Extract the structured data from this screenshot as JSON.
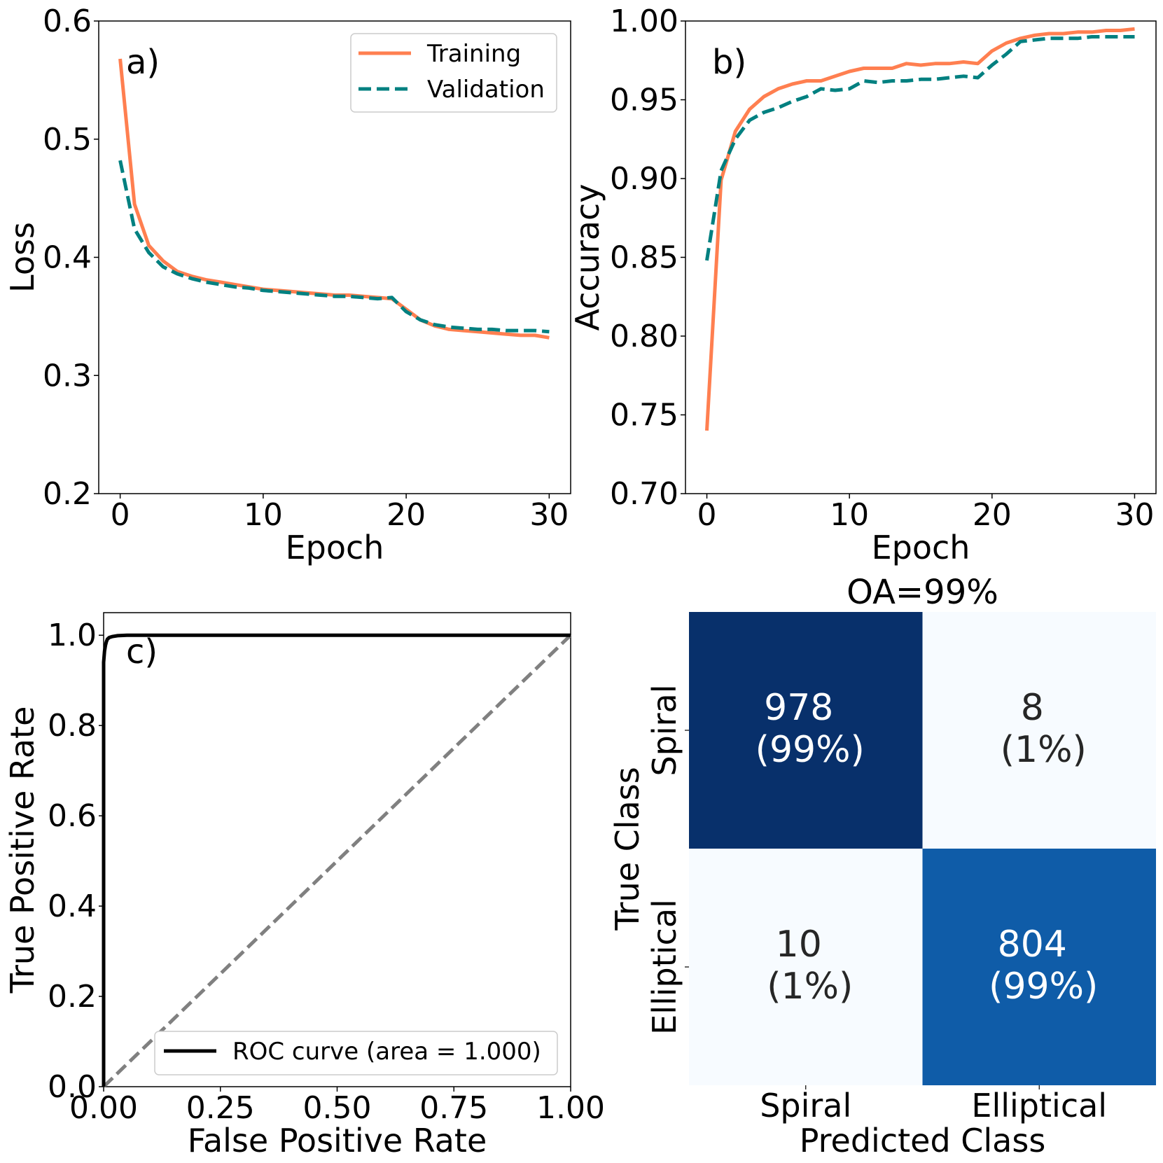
{
  "colors": {
    "training": "#FF7F50",
    "validation": "#008080",
    "roc": "#000000",
    "diagonal": "#808080",
    "cm_dark": "#08306B",
    "cm_mid": "#0F5CA8",
    "cm_light": "#F7FBFF",
    "cm_text_light": "#FFFFFF",
    "cm_text_dark": "#262626"
  },
  "chart_data": [
    {
      "type": "line",
      "panel_label": "a)",
      "xlabel": "Epoch",
      "ylabel": "Loss",
      "xlim": [
        -1.5,
        31.5
      ],
      "ylim": [
        0.2,
        0.6
      ],
      "xticks": [
        0,
        10,
        20,
        30
      ],
      "yticks": [
        0.2,
        0.3,
        0.4,
        0.5,
        0.6
      ],
      "xtick_labels": [
        "0",
        "10",
        "20",
        "30"
      ],
      "ytick_labels": [
        "0.2",
        "0.3",
        "0.4",
        "0.5",
        "0.6"
      ],
      "legend": "top-right",
      "x": [
        0,
        1,
        2,
        3,
        4,
        5,
        6,
        7,
        8,
        9,
        10,
        11,
        12,
        13,
        14,
        15,
        16,
        17,
        18,
        19,
        20,
        21,
        22,
        23,
        24,
        25,
        26,
        27,
        28,
        29,
        30
      ],
      "series": [
        {
          "name": "Training",
          "style": "solid",
          "values": [
            0.568,
            0.445,
            0.41,
            0.397,
            0.388,
            0.384,
            0.381,
            0.379,
            0.377,
            0.375,
            0.373,
            0.372,
            0.371,
            0.37,
            0.369,
            0.368,
            0.368,
            0.367,
            0.366,
            0.365,
            0.356,
            0.347,
            0.342,
            0.339,
            0.338,
            0.337,
            0.336,
            0.335,
            0.334,
            0.334,
            0.332
          ]
        },
        {
          "name": "Validation",
          "style": "dashed",
          "values": [
            0.482,
            0.424,
            0.404,
            0.392,
            0.386,
            0.382,
            0.379,
            0.377,
            0.375,
            0.374,
            0.372,
            0.371,
            0.37,
            0.369,
            0.368,
            0.367,
            0.367,
            0.366,
            0.365,
            0.366,
            0.354,
            0.347,
            0.343,
            0.341,
            0.34,
            0.339,
            0.339,
            0.338,
            0.338,
            0.338,
            0.337
          ]
        }
      ]
    },
    {
      "type": "line",
      "panel_label": "b)",
      "xlabel": "Epoch",
      "ylabel": "Accuracy",
      "xlim": [
        -1.5,
        31.5
      ],
      "ylim": [
        0.7,
        1.0
      ],
      "xticks": [
        0,
        10,
        20,
        30
      ],
      "yticks": [
        0.7,
        0.75,
        0.8,
        0.85,
        0.9,
        0.95,
        1.0
      ],
      "xtick_labels": [
        "0",
        "10",
        "20",
        "30"
      ],
      "ytick_labels": [
        "0.70",
        "0.75",
        "0.80",
        "0.85",
        "0.90",
        "0.95",
        "1.00"
      ],
      "x": [
        0,
        1,
        2,
        3,
        4,
        5,
        6,
        7,
        8,
        9,
        10,
        11,
        12,
        13,
        14,
        15,
        16,
        17,
        18,
        19,
        20,
        21,
        22,
        23,
        24,
        25,
        26,
        27,
        28,
        29,
        30
      ],
      "series": [
        {
          "name": "Training",
          "style": "solid",
          "values": [
            0.74,
            0.899,
            0.93,
            0.944,
            0.952,
            0.957,
            0.96,
            0.962,
            0.962,
            0.965,
            0.968,
            0.97,
            0.97,
            0.97,
            0.973,
            0.972,
            0.973,
            0.973,
            0.974,
            0.973,
            0.981,
            0.986,
            0.989,
            0.991,
            0.992,
            0.992,
            0.993,
            0.993,
            0.994,
            0.994,
            0.995
          ]
        },
        {
          "name": "Validation",
          "style": "dashed",
          "values": [
            0.848,
            0.905,
            0.925,
            0.937,
            0.942,
            0.945,
            0.949,
            0.952,
            0.957,
            0.956,
            0.957,
            0.962,
            0.961,
            0.962,
            0.962,
            0.963,
            0.963,
            0.964,
            0.965,
            0.964,
            0.972,
            0.979,
            0.987,
            0.988,
            0.989,
            0.989,
            0.989,
            0.99,
            0.99,
            0.99,
            0.99
          ]
        }
      ]
    },
    {
      "type": "line",
      "panel_label": "c)",
      "xlabel": "False Positive Rate",
      "ylabel": "True Positive Rate",
      "xlim": [
        0.0,
        1.0
      ],
      "ylim": [
        0.0,
        1.05
      ],
      "xticks": [
        0,
        0.25,
        0.5,
        0.75,
        1.0
      ],
      "yticks": [
        0,
        0.2,
        0.4,
        0.6,
        0.8,
        1.0
      ],
      "xtick_labels": [
        "0.00",
        "0.25",
        "0.50",
        "0.75",
        "1.00"
      ],
      "ytick_labels": [
        "0.0",
        "0.2",
        "0.4",
        "0.6",
        "0.8",
        "1.0"
      ],
      "legend": "bottom-right",
      "series": [
        {
          "name": "ROC curve (area = 1.000)",
          "style": "solid",
          "x": [
            0.0,
            0.0,
            0.002,
            0.004,
            0.006,
            0.008,
            0.012,
            0.018,
            0.03,
            0.05,
            1.0
          ],
          "y": [
            0.0,
            0.94,
            0.965,
            0.978,
            0.986,
            0.991,
            0.995,
            0.997,
            0.999,
            1.0,
            1.0
          ]
        },
        {
          "style": "dashed",
          "x": [
            0,
            1
          ],
          "y": [
            0,
            1
          ]
        }
      ]
    },
    {
      "type": "heatmap",
      "title": "OA=99%",
      "xlabel": "Predicted Class",
      "ylabel": "True Class",
      "x_categories": [
        "Spiral",
        "Elliptical"
      ],
      "y_categories": [
        "Spiral",
        "Elliptical"
      ],
      "values": [
        [
          978,
          8
        ],
        [
          10,
          804
        ]
      ],
      "cell_counts": [
        [
          "978",
          "8"
        ],
        [
          "10",
          "804"
        ]
      ],
      "cell_percents": [
        [
          "(99%)",
          "(1%)"
        ],
        [
          "(1%)",
          "(99%)"
        ]
      ]
    }
  ]
}
